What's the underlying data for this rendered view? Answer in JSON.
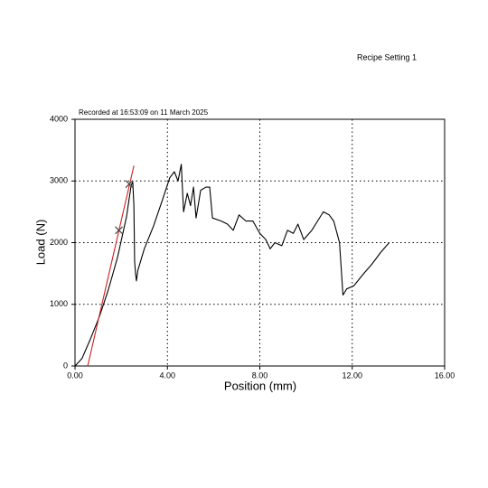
{
  "chart_data": {
    "type": "line",
    "title": "Recipe Setting 1",
    "subtitle": "Recorded at 16:53:09 on 11 March 2025",
    "x_label": "Position (mm)",
    "y_label": "Load (N)",
    "xlim": [
      0,
      16
    ],
    "ylim": [
      0,
      4000
    ],
    "xticks": [
      {
        "value": 0,
        "label": "0.00"
      },
      {
        "value": 4,
        "label": "4.00"
      },
      {
        "value": 8,
        "label": "8.00"
      },
      {
        "value": 12,
        "label": "12.00"
      },
      {
        "value": 16,
        "label": "16.00"
      }
    ],
    "yticks": [
      0,
      1000,
      2000,
      3000,
      4000
    ],
    "grid": true,
    "series": [
      {
        "color": "#000000",
        "x": [
          0,
          0.3,
          0.67,
          1.06,
          1.45,
          1.84,
          2.23,
          2.43,
          2.5,
          2.55,
          2.58,
          2.62,
          2.66,
          2.72,
          3.0,
          3.4,
          3.8,
          4.1,
          4.3,
          4.46,
          4.6,
          4.7,
          4.86,
          5.0,
          5.13,
          5.24,
          5.44,
          5.67,
          5.83,
          5.95,
          6.33,
          6.6,
          6.85,
          7.1,
          7.4,
          7.7,
          8.0,
          8.26,
          8.45,
          8.65,
          8.95,
          9.2,
          9.45,
          9.65,
          9.9,
          10.25,
          10.5,
          10.75,
          11.0,
          11.2,
          11.45,
          11.6,
          11.76,
          12.07,
          12.5,
          12.85,
          13.25,
          13.6
        ],
        "y": [
          0,
          120,
          440,
          805,
          1245,
          1760,
          2420,
          2930,
          2980,
          2600,
          1700,
          1500,
          1380,
          1550,
          1900,
          2270,
          2710,
          3050,
          3150,
          3000,
          3270,
          2500,
          2800,
          2600,
          2900,
          2400,
          2850,
          2900,
          2900,
          2400,
          2350,
          2300,
          2200,
          2450,
          2350,
          2350,
          2150,
          2050,
          1900,
          2000,
          1950,
          2200,
          2150,
          2300,
          2050,
          2200,
          2350,
          2500,
          2450,
          2350,
          2000,
          1150,
          1250,
          1300,
          1500,
          1650,
          1850,
          2000
        ]
      },
      {
        "color": "#cc2222",
        "x": [
          0.55,
          2.55
        ],
        "y": [
          0,
          3250
        ]
      },
      {
        "color": "#444444",
        "marker": "x",
        "x": [
          1.9,
          2.35
        ],
        "y": [
          2200,
          2950
        ]
      }
    ]
  }
}
